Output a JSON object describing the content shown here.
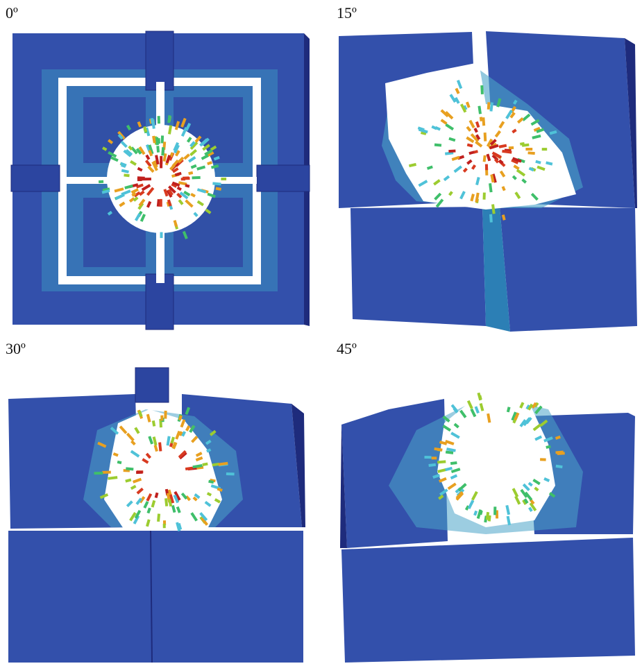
{
  "panels": [
    {
      "label": "0º"
    },
    {
      "label": "15º"
    },
    {
      "label": "30º"
    },
    {
      "label": "45º"
    }
  ]
}
